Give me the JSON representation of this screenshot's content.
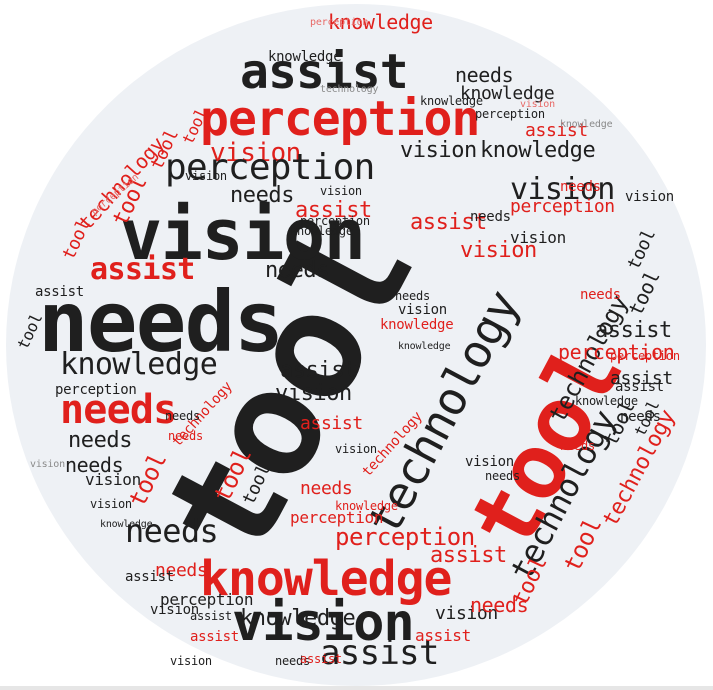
{
  "words": {
    "tool": "tool",
    "technology": "technology",
    "vision": "vision",
    "needs": "needs",
    "knowledge": "knowledge",
    "perception": "perception",
    "assist": "assist"
  },
  "colors": {
    "background_circle": "#eef1f5",
    "dark_text": "#1f1f1f",
    "red_text": "#e0201c",
    "gray_text": "#8a8a8a",
    "light_red_text": "#e86a67"
  }
}
